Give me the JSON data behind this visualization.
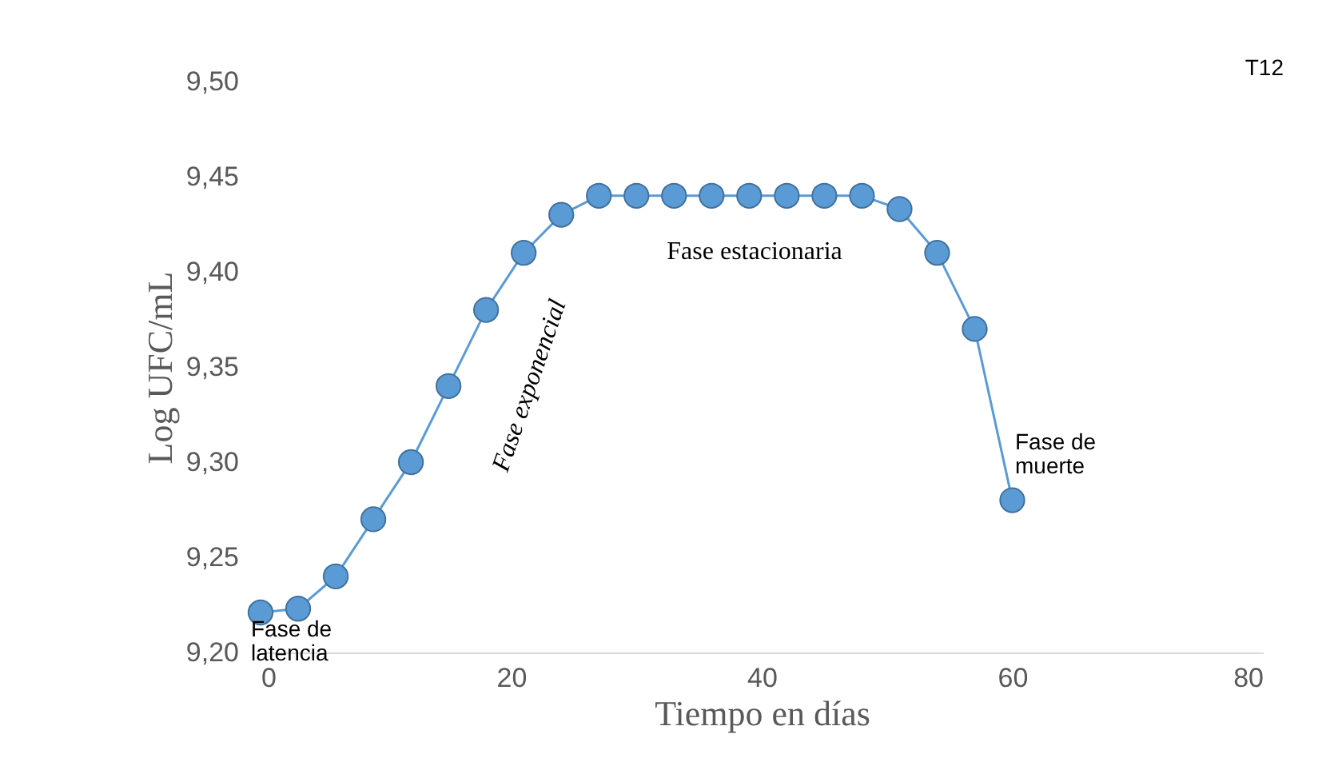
{
  "chart_data": {
    "type": "line",
    "xlabel": "Tiempo en días",
    "ylabel": "Log UFC/mL",
    "x": [
      0,
      3,
      6,
      9,
      12,
      15,
      18,
      21,
      24,
      27,
      30,
      33,
      36,
      39,
      42,
      45,
      48,
      51,
      54,
      57,
      60
    ],
    "series": [
      {
        "color": "#5b9bd5",
        "values": [
          9.221,
          9.223,
          9.24,
          9.27,
          9.3,
          9.34,
          9.38,
          9.41,
          9.43,
          9.44,
          9.44,
          9.44,
          9.44,
          9.44,
          9.44,
          9.44,
          9.44,
          9.433,
          9.41,
          9.37,
          9.28
        ]
      }
    ],
    "xlim": [
      0,
      80
    ],
    "xticks": [
      0,
      20,
      40,
      60,
      80
    ],
    "ylim": [
      9.2,
      9.5
    ],
    "yticks": [
      {
        "value": 9.2,
        "label": "9,20"
      },
      {
        "value": 9.25,
        "label": "9,25"
      },
      {
        "value": 9.3,
        "label": "9,30"
      },
      {
        "value": 9.35,
        "label": "9,35"
      },
      {
        "value": 9.4,
        "label": "9,40"
      },
      {
        "value": 9.45,
        "label": "9,45"
      },
      {
        "value": 9.5,
        "label": "9,50"
      }
    ],
    "grid": false,
    "marker": "circle",
    "line_style": "solid",
    "annotations": [
      "T12",
      "Fase de latencia",
      "Fase exponencial",
      "Fase estacionaria",
      "Fase de muerte"
    ]
  }
}
